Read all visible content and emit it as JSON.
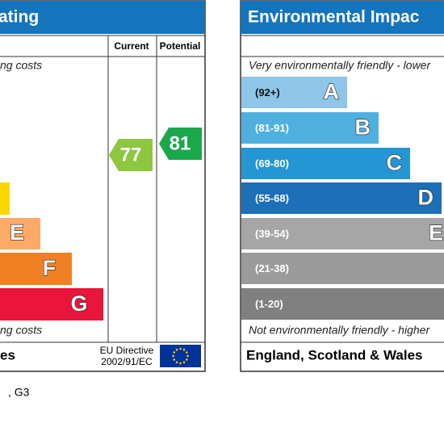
{
  "energy": {
    "title": "ating",
    "top_note": "ng costs",
    "bottom_note": "ng costs",
    "col_current": "Current",
    "col_potential": "Potential",
    "bands": [
      "E",
      "F",
      "G"
    ],
    "current": "77",
    "potential": "81",
    "footer": "es",
    "directive": [
      "EU Directive",
      "2002/91/EC"
    ]
  },
  "environmental": {
    "title": "Environmental Impac",
    "top_note": "Very environmentally friendly - lower",
    "bottom_note": "Not environmentally friendly - higher",
    "bands": [
      {
        "range": "(92+)",
        "letter": "A"
      },
      {
        "range": "(81-91)",
        "letter": "B"
      },
      {
        "range": "(69-80)",
        "letter": "C"
      },
      {
        "range": "(55-68)",
        "letter": "D"
      },
      {
        "range": "(39-54)",
        "letter": "E"
      },
      {
        "range": "(21-38)"
      },
      {
        "range": "(1-20)"
      }
    ],
    "footer": "England, Scotland & Wales"
  },
  "caption": ", G3"
}
